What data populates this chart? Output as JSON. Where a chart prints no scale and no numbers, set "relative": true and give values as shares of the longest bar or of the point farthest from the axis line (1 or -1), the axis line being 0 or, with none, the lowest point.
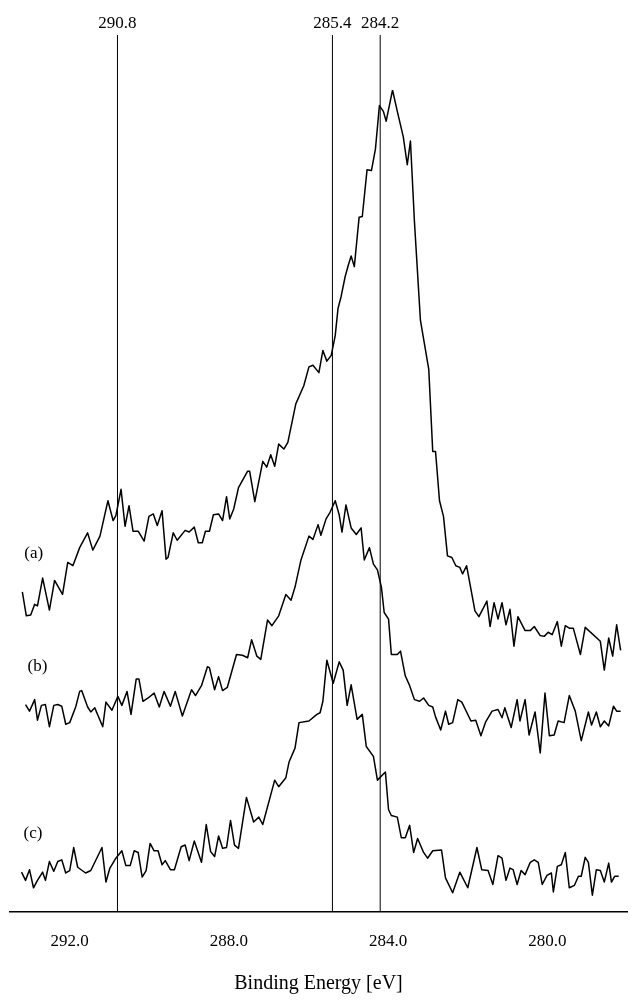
{
  "chart_data": {
    "type": "line",
    "relative": true,
    "xlabel": "Binding Energy [eV]",
    "xlim": [
      293.5,
      278.0
    ],
    "xticks": [
      {
        "value": 292,
        "label": "292.0"
      },
      {
        "value": 288,
        "label": "288.0"
      },
      {
        "value": 284,
        "label": "284.0"
      },
      {
        "value": 280,
        "label": "280.0"
      }
    ],
    "grid": false,
    "legend": false,
    "marker": "none",
    "line_style": "solid",
    "tick_labels": "x",
    "ref_lines": [
      {
        "axis": "x",
        "value": 290.8,
        "label": "290.8",
        "color": "#000000"
      },
      {
        "axis": "x",
        "value": 285.4,
        "label": "285.4",
        "color": "#000000"
      },
      {
        "axis": "x",
        "value": 284.2,
        "label": "284.2",
        "color": "#000000"
      }
    ],
    "series": [
      {
        "name": "(a)",
        "color": "#000000",
        "x": [
          293.19,
          293.09,
          292.98,
          292.88,
          292.81,
          292.68,
          292.51,
          292.38,
          292.18,
          292.05,
          291.92,
          291.75,
          291.55,
          291.42,
          291.24,
          291.04,
          290.91,
          290.84,
          290.71,
          290.61,
          290.51,
          290.41,
          290.28,
          290.13,
          290.01,
          289.9,
          289.8,
          289.68,
          289.58,
          289.53,
          289.4,
          289.3,
          289.1,
          289.0,
          288.87,
          288.77,
          288.67,
          288.59,
          288.49,
          288.39,
          288.26,
          288.16,
          288.06,
          287.98,
          287.88,
          287.76,
          287.53,
          287.48,
          287.35,
          287.15,
          287.05,
          286.95,
          286.85,
          286.75,
          286.62,
          286.52,
          286.32,
          286.12,
          285.99,
          285.89,
          285.74,
          285.64,
          285.54,
          285.43,
          285.33,
          285.26,
          285.18,
          285.08,
          285.0,
          284.93,
          284.85,
          284.73,
          284.65,
          284.53,
          284.42,
          284.32,
          284.22,
          284.12,
          284.05,
          283.89,
          283.77,
          283.62,
          283.52,
          283.44,
          283.34,
          283.19,
          282.98,
          282.88,
          282.81,
          282.71,
          282.61,
          282.51,
          282.4,
          282.3,
          282.2,
          282.13,
          282.03,
          281.82,
          281.72,
          281.52,
          281.44,
          281.34,
          281.24,
          281.14,
          281.04,
          280.94,
          280.84,
          280.74,
          280.56,
          280.43,
          280.33,
          280.18,
          280.08,
          279.98,
          279.88,
          279.75,
          279.65,
          279.55,
          279.45,
          279.35,
          279.17,
          279.05,
          278.67,
          278.57,
          278.46,
          278.36,
          278.26,
          278.16
        ],
        "values": [
          0.389,
          0.36,
          0.361,
          0.374,
          0.372,
          0.406,
          0.367,
          0.403,
          0.386,
          0.425,
          0.421,
          0.443,
          0.461,
          0.44,
          0.457,
          0.5,
          0.476,
          0.482,
          0.514,
          0.469,
          0.494,
          0.463,
          0.463,
          0.451,
          0.481,
          0.484,
          0.47,
          0.488,
          0.429,
          0.431,
          0.461,
          0.452,
          0.464,
          0.462,
          0.468,
          0.449,
          0.449,
          0.463,
          0.463,
          0.483,
          0.484,
          0.476,
          0.505,
          0.478,
          0.49,
          0.516,
          0.536,
          0.536,
          0.499,
          0.548,
          0.541,
          0.556,
          0.542,
          0.569,
          0.563,
          0.571,
          0.618,
          0.64,
          0.663,
          0.665,
          0.656,
          0.683,
          0.67,
          0.677,
          0.701,
          0.734,
          0.749,
          0.773,
          0.787,
          0.798,
          0.785,
          0.845,
          0.846,
          0.903,
          0.902,
          0.928,
          0.981,
          0.974,
          0.962,
          1.0,
          0.974,
          0.943,
          0.909,
          0.938,
          0.84,
          0.72,
          0.66,
          0.56,
          0.56,
          0.5,
          0.481,
          0.433,
          0.431,
          0.421,
          0.419,
          0.411,
          0.421,
          0.366,
          0.359,
          0.378,
          0.347,
          0.376,
          0.356,
          0.376,
          0.349,
          0.368,
          0.323,
          0.359,
          0.342,
          0.342,
          0.347,
          0.336,
          0.335,
          0.34,
          0.337,
          0.353,
          0.323,
          0.348,
          0.345,
          0.345,
          0.313,
          0.346,
          0.329,
          0.294,
          0.333,
          0.311,
          0.349,
          0.318
        ]
      },
      {
        "name": "(b)",
        "color": "#000000",
        "x": [
          293.11,
          293.01,
          292.88,
          292.81,
          292.71,
          292.61,
          292.51,
          292.4,
          292.3,
          292.2,
          292.1,
          292.0,
          291.85,
          291.75,
          291.7,
          291.55,
          291.47,
          291.37,
          291.17,
          291.09,
          290.94,
          290.79,
          290.69,
          290.56,
          290.46,
          290.33,
          290.26,
          290.16,
          290.03,
          289.88,
          289.75,
          289.63,
          289.47,
          289.35,
          289.17,
          288.94,
          288.84,
          288.69,
          288.54,
          288.49,
          288.36,
          288.26,
          288.16,
          288.04,
          287.81,
          287.66,
          287.53,
          287.43,
          287.3,
          287.2,
          287.03,
          286.92,
          286.75,
          286.57,
          286.44,
          286.34,
          286.19,
          285.99,
          285.89,
          285.76,
          285.69,
          285.56,
          285.46,
          285.33,
          285.23,
          285.16,
          285.06,
          284.93,
          284.8,
          284.68,
          284.6,
          284.47,
          284.37,
          284.27,
          284.17,
          284.1,
          283.99,
          283.92,
          283.77,
          283.69,
          283.57,
          283.46,
          283.34,
          283.21,
          283.11,
          282.98,
          282.88,
          282.81,
          282.68,
          282.56,
          282.48,
          282.38,
          282.25,
          282.15,
          281.92,
          281.8,
          281.67,
          281.55,
          281.39,
          281.24,
          281.14,
          281.07,
          280.91,
          280.76,
          280.69,
          280.56,
          280.46,
          280.31,
          280.18,
          280.06,
          279.95,
          279.83,
          279.73,
          279.58,
          279.45,
          279.3,
          279.15,
          278.97,
          278.89,
          278.77,
          278.67,
          278.57,
          278.46,
          278.34,
          278.26,
          278.16
        ],
        "values": [
          0.252,
          0.244,
          0.258,
          0.233,
          0.251,
          0.252,
          0.225,
          0.251,
          0.252,
          0.25,
          0.228,
          0.23,
          0.249,
          0.268,
          0.269,
          0.249,
          0.243,
          0.248,
          0.225,
          0.255,
          0.245,
          0.262,
          0.251,
          0.268,
          0.24,
          0.283,
          0.283,
          0.256,
          0.26,
          0.266,
          0.249,
          0.268,
          0.25,
          0.268,
          0.238,
          0.27,
          0.263,
          0.275,
          0.298,
          0.297,
          0.27,
          0.286,
          0.269,
          0.273,
          0.313,
          0.312,
          0.309,
          0.331,
          0.311,
          0.307,
          0.355,
          0.348,
          0.36,
          0.386,
          0.379,
          0.395,
          0.428,
          0.457,
          0.453,
          0.471,
          0.458,
          0.478,
          0.486,
          0.5,
          0.483,
          0.462,
          0.495,
          0.467,
          0.459,
          0.467,
          0.428,
          0.443,
          0.423,
          0.416,
          0.395,
          0.364,
          0.356,
          0.313,
          0.313,
          0.317,
          0.287,
          0.275,
          0.258,
          0.256,
          0.26,
          0.251,
          0.249,
          0.237,
          0.221,
          0.244,
          0.228,
          0.23,
          0.258,
          0.255,
          0.232,
          0.233,
          0.214,
          0.231,
          0.244,
          0.246,
          0.236,
          0.248,
          0.224,
          0.258,
          0.232,
          0.258,
          0.215,
          0.243,
          0.193,
          0.266,
          0.214,
          0.215,
          0.232,
          0.23,
          0.263,
          0.244,
          0.208,
          0.243,
          0.227,
          0.243,
          0.225,
          0.232,
          0.226,
          0.25,
          0.244,
          0.244
        ]
      },
      {
        "name": "(c)",
        "color": "#000000",
        "x": [
          293.21,
          293.11,
          293.01,
          292.91,
          292.81,
          292.68,
          292.61,
          292.51,
          292.4,
          292.3,
          292.2,
          292.1,
          292.0,
          291.9,
          291.8,
          291.6,
          291.47,
          291.19,
          291.09,
          290.99,
          290.84,
          290.69,
          290.59,
          290.48,
          290.38,
          290.28,
          290.18,
          290.08,
          289.98,
          289.88,
          289.78,
          289.68,
          289.6,
          289.47,
          289.37,
          289.2,
          289.1,
          289.0,
          288.87,
          288.69,
          288.57,
          288.46,
          288.36,
          288.26,
          288.16,
          288.06,
          287.96,
          287.86,
          287.76,
          287.56,
          287.38,
          287.25,
          287.15,
          286.85,
          286.75,
          286.57,
          286.49,
          286.34,
          286.24,
          285.99,
          285.79,
          285.71,
          285.64,
          285.54,
          285.38,
          285.23,
          285.13,
          285.03,
          284.93,
          284.78,
          284.65,
          284.55,
          284.37,
          284.27,
          284.07,
          283.99,
          283.92,
          283.77,
          283.67,
          283.57,
          283.46,
          283.36,
          283.26,
          283.11,
          283.01,
          282.88,
          282.66,
          282.56,
          282.38,
          282.2,
          282.0,
          281.77,
          281.65,
          281.49,
          281.37,
          281.24,
          281.14,
          281.04,
          280.94,
          280.86,
          280.76,
          280.66,
          280.56,
          280.43,
          280.33,
          280.23,
          280.13,
          280.01,
          279.9,
          279.85,
          279.75,
          279.65,
          279.55,
          279.45,
          279.32,
          279.22,
          279.15,
          279.05,
          278.97,
          278.87,
          278.77,
          278.67,
          278.57,
          278.46,
          278.39,
          278.31,
          278.21
        ],
        "values": [
          0.048,
          0.038,
          0.051,
          0.029,
          0.038,
          0.048,
          0.038,
          0.061,
          0.049,
          0.061,
          0.063,
          0.047,
          0.05,
          0.078,
          0.054,
          0.047,
          0.05,
          0.078,
          0.036,
          0.053,
          0.065,
          0.074,
          0.056,
          0.056,
          0.074,
          0.072,
          0.042,
          0.05,
          0.083,
          0.074,
          0.074,
          0.057,
          0.062,
          0.051,
          0.051,
          0.079,
          0.081,
          0.062,
          0.086,
          0.06,
          0.106,
          0.073,
          0.067,
          0.092,
          0.077,
          0.078,
          0.111,
          0.081,
          0.077,
          0.139,
          0.109,
          0.115,
          0.106,
          0.16,
          0.152,
          0.163,
          0.182,
          0.199,
          0.23,
          0.232,
          0.24,
          0.242,
          0.256,
          0.306,
          0.278,
          0.304,
          0.294,
          0.251,
          0.276,
          0.234,
          0.24,
          0.201,
          0.189,
          0.16,
          0.17,
          0.124,
          0.117,
          0.115,
          0.09,
          0.09,
          0.105,
          0.072,
          0.089,
          0.072,
          0.065,
          0.074,
          0.075,
          0.041,
          0.023,
          0.048,
          0.029,
          0.078,
          0.051,
          0.05,
          0.033,
          0.068,
          0.065,
          0.038,
          0.053,
          0.051,
          0.033,
          0.05,
          0.045,
          0.06,
          0.063,
          0.06,
          0.033,
          0.044,
          0.047,
          0.024,
          0.055,
          0.057,
          0.072,
          0.029,
          0.032,
          0.043,
          0.043,
          0.066,
          0.06,
          0.02,
          0.051,
          0.05,
          0.036,
          0.059,
          0.036,
          0.043,
          0.043
        ]
      }
    ]
  }
}
